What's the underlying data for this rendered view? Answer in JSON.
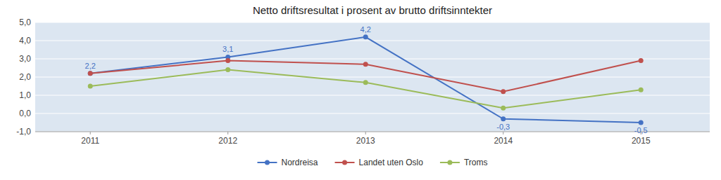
{
  "chart_data": {
    "type": "line",
    "title": "Netto driftsresultat i prosent av brutto driftsinntekter",
    "x": [
      2011,
      2012,
      2013,
      2014,
      2015
    ],
    "xlim": [
      2010.6,
      2015.5
    ],
    "xticks": [
      2011,
      2012,
      2013,
      2014,
      2015
    ],
    "ylim": [
      -1.0,
      5.0
    ],
    "yticks": [
      {
        "value": -1.0,
        "label": "-1,0"
      },
      {
        "value": 0.0,
        "label": "0,0"
      },
      {
        "value": 1.0,
        "label": "1,0"
      },
      {
        "value": 2.0,
        "label": "2,0"
      },
      {
        "value": 3.0,
        "label": "3,0"
      },
      {
        "value": 4.0,
        "label": "4,0"
      },
      {
        "value": 5.0,
        "label": "5,0"
      }
    ],
    "grid": true,
    "legend": "bottom",
    "series": [
      {
        "name": "Nordreisa",
        "color": "#4472C4",
        "marker": "circle",
        "values": [
          2.2,
          3.1,
          4.2,
          -0.3,
          -0.5
        ],
        "data_labels": true,
        "value_labels": [
          "2,2",
          "3,1",
          "4,2",
          "-0,3",
          "-0,5"
        ]
      },
      {
        "name": "Landet uten Oslo",
        "color": "#C0504D",
        "marker": "circle",
        "values": [
          2.2,
          2.9,
          2.7,
          1.2,
          2.9
        ]
      },
      {
        "name": "Troms",
        "color": "#9BBB59",
        "marker": "circle",
        "values": [
          1.5,
          2.4,
          1.7,
          0.3,
          1.3
        ]
      }
    ]
  }
}
